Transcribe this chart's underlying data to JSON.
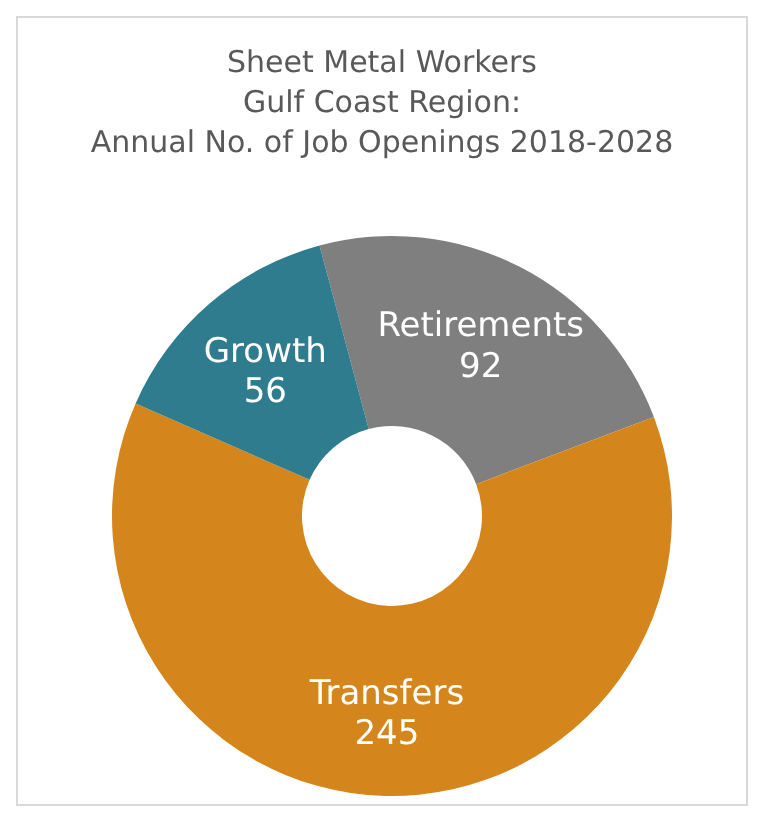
{
  "chart_data": {
    "type": "donut",
    "title": "Sheet Metal Workers\nGulf Coast Region:\nAnnual No. of Job Openings 2018-2028",
    "categories": [
      "Retirements",
      "Transfers",
      "Growth"
    ],
    "values": [
      92,
      245,
      56
    ],
    "colors": [
      "#7f7f7f",
      "#d4861c",
      "#2f7c8e"
    ],
    "data_labels": true
  }
}
